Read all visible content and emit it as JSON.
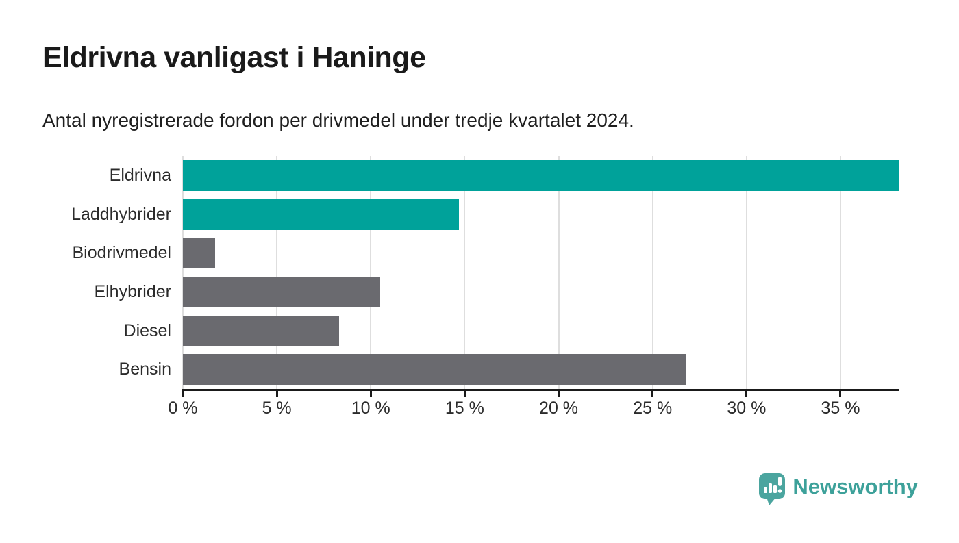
{
  "page": {
    "title": "Eldrivna vanligast i Haninge",
    "subtitle": "Antal nyregistrerade fordon per drivmedel under tredje kvartalet 2024."
  },
  "branding": {
    "logo_text": "Newsworthy"
  },
  "colors": {
    "highlight_bar": "#00a29a",
    "default_bar": "#6a6a6f",
    "gridline": "#dedede",
    "axis": "#1a1a1a",
    "background": "#ffffff",
    "logo_icon": "#4ba59f",
    "logo_text": "#3da19a"
  },
  "chart_data": {
    "type": "bar",
    "orientation": "horizontal",
    "title": "Eldrivna vanligast i Haninge",
    "subtitle": "Antal nyregistrerade fordon per drivmedel under tredje kvartalet 2024.",
    "categories": [
      "Eldrivna",
      "Laddhybrider",
      "Biodrivmedel",
      "Elhybrider",
      "Diesel",
      "Bensin"
    ],
    "values": [
      38.1,
      14.7,
      1.7,
      10.5,
      8.3,
      26.8
    ],
    "unit": "%",
    "bar_colors": [
      "#00a29a",
      "#00a29a",
      "#6a6a6f",
      "#6a6a6f",
      "#6a6a6f",
      "#6a6a6f"
    ],
    "xlim": [
      0,
      38.1
    ],
    "x_tick_values": [
      0,
      5,
      10,
      15,
      20,
      25,
      30,
      35
    ],
    "x_tick_labels": [
      "0 %",
      "5 %",
      "10 %",
      "15 %",
      "20 %",
      "25 %",
      "30 %",
      "35 %"
    ],
    "grid": true,
    "legend": false
  }
}
